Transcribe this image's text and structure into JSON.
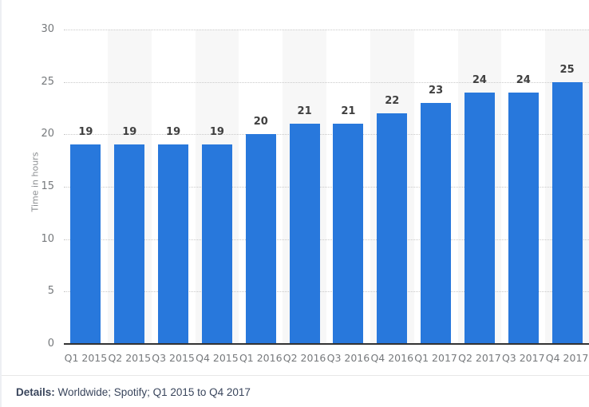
{
  "chart_data": {
    "type": "bar",
    "categories": [
      "Q1 2015",
      "Q2 2015",
      "Q3 2015",
      "Q4 2015",
      "Q1 2016",
      "Q2 2016",
      "Q3 2016",
      "Q4 2016",
      "Q1 2017",
      "Q2 2017",
      "Q3 2017",
      "Q4 2017"
    ],
    "values": [
      19,
      19,
      19,
      19,
      20,
      21,
      21,
      22,
      23,
      24,
      24,
      25
    ],
    "title": "",
    "xlabel": "",
    "ylabel": "Time in hours",
    "ylim": [
      0,
      30
    ],
    "yticks": [
      0,
      5,
      10,
      15,
      20,
      25,
      30
    ],
    "grid": "horizontal-dotted",
    "legend": "none",
    "value_labels_shown": true,
    "colors": {
      "bar": "#2878dc",
      "alt_band": "#f7f7f7",
      "gridline": "#c9c9c9",
      "axis_line": "#333333",
      "tick_label": "#76797c",
      "value_label": "#404040",
      "y_title": "#8b8e91"
    }
  },
  "footer": {
    "details_label": "Details:",
    "details_text": " Worldwide; Spotify; Q1 2015 to Q4 2017",
    "text_color": "#39455c"
  }
}
